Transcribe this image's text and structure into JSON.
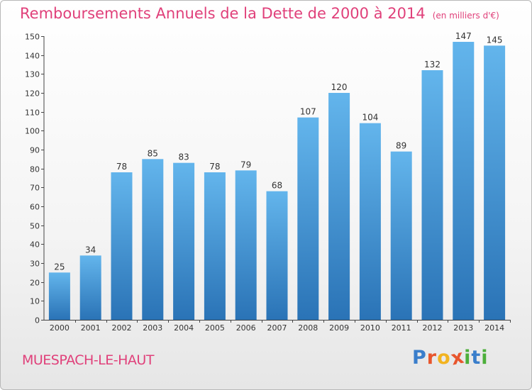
{
  "header": {
    "title": "Remboursements Annuels de la Dette de 2000 à 2014",
    "subtitle": "(en milliers d'€)"
  },
  "footer": {
    "commune": "MUESPACH-LE-HAUT",
    "logo_letters": [
      "P",
      "r",
      "o",
      "x",
      "i",
      "t",
      "i"
    ]
  },
  "colors": {
    "title": "#e0407a",
    "bar_top": "#63b5ec",
    "bar_bottom": "#2a73b6",
    "logo": [
      "#3a7ecb",
      "#e8562d",
      "#f2b320",
      "#e8562d",
      "#4caf3a",
      "#3a7ecb",
      "#4caf3a"
    ]
  },
  "chart_data": {
    "type": "bar",
    "title": "Remboursements Annuels de la Dette de 2000 à 2014",
    "subtitle": "(en milliers d'€)",
    "categories": [
      "2000",
      "2001",
      "2002",
      "2003",
      "2004",
      "2005",
      "2006",
      "2007",
      "2008",
      "2009",
      "2010",
      "2011",
      "2012",
      "2013",
      "2014"
    ],
    "values": [
      25,
      34,
      78,
      85,
      83,
      78,
      79,
      68,
      107,
      120,
      104,
      89,
      132,
      147,
      145
    ],
    "ylim": [
      0,
      150
    ],
    "yticks": [
      0,
      10,
      20,
      30,
      40,
      50,
      60,
      70,
      80,
      90,
      100,
      110,
      120,
      130,
      140,
      150
    ],
    "grid": false,
    "data_labels": true
  }
}
